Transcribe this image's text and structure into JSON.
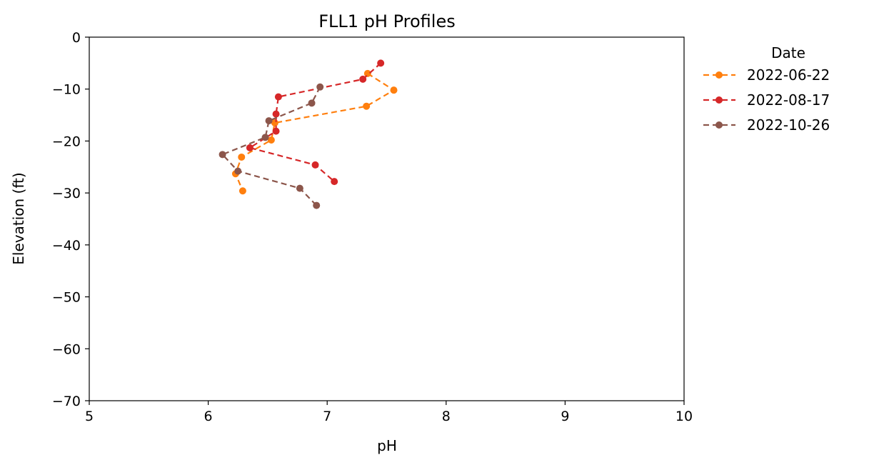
{
  "chart_data": {
    "type": "line",
    "title": "FLL1 pH Profiles",
    "xlabel": "pH",
    "ylabel": "Elevation (ft)",
    "xlim": [
      5,
      10
    ],
    "ylim": [
      -70,
      0
    ],
    "xticks": [
      "5",
      "6",
      "7",
      "8",
      "9",
      "10"
    ],
    "yticks": [
      "0",
      "−10",
      "−20",
      "−30",
      "−40",
      "−50",
      "−60",
      "−70"
    ],
    "xtick_values": [
      5,
      6,
      7,
      8,
      9,
      10
    ],
    "ytick_values": [
      0,
      -10,
      -20,
      -30,
      -40,
      -50,
      -60,
      -70
    ],
    "grid": false,
    "legend": {
      "title": "Date",
      "placement": "outside-right"
    },
    "series": [
      {
        "name": "2022-06-22",
        "color": "#ff7f0e",
        "points": [
          {
            "x": 7.34,
            "y": -7.0
          },
          {
            "x": 7.56,
            "y": -10.2
          },
          {
            "x": 7.33,
            "y": -13.3
          },
          {
            "x": 6.56,
            "y": -16.5
          },
          {
            "x": 6.53,
            "y": -19.8
          },
          {
            "x": 6.28,
            "y": -23.1
          },
          {
            "x": 6.23,
            "y": -26.3
          },
          {
            "x": 6.29,
            "y": -29.6
          }
        ]
      },
      {
        "name": "2022-08-17",
        "color": "#d62728",
        "points": [
          {
            "x": 7.45,
            "y": -5.0
          },
          {
            "x": 7.3,
            "y": -8.1
          },
          {
            "x": 6.59,
            "y": -11.5
          },
          {
            "x": 6.57,
            "y": -14.8
          },
          {
            "x": 6.57,
            "y": -18.1
          },
          {
            "x": 6.35,
            "y": -21.3
          },
          {
            "x": 6.9,
            "y": -24.6
          },
          {
            "x": 7.06,
            "y": -27.8
          }
        ]
      },
      {
        "name": "2022-10-26",
        "color": "#8c564b",
        "points": [
          {
            "x": 6.94,
            "y": -9.6
          },
          {
            "x": 6.87,
            "y": -12.7
          },
          {
            "x": 6.51,
            "y": -16.1
          },
          {
            "x": 6.48,
            "y": -19.3
          },
          {
            "x": 6.12,
            "y": -22.6
          },
          {
            "x": 6.25,
            "y": -25.8
          },
          {
            "x": 6.77,
            "y": -29.1
          },
          {
            "x": 6.91,
            "y": -32.4
          }
        ]
      }
    ]
  }
}
